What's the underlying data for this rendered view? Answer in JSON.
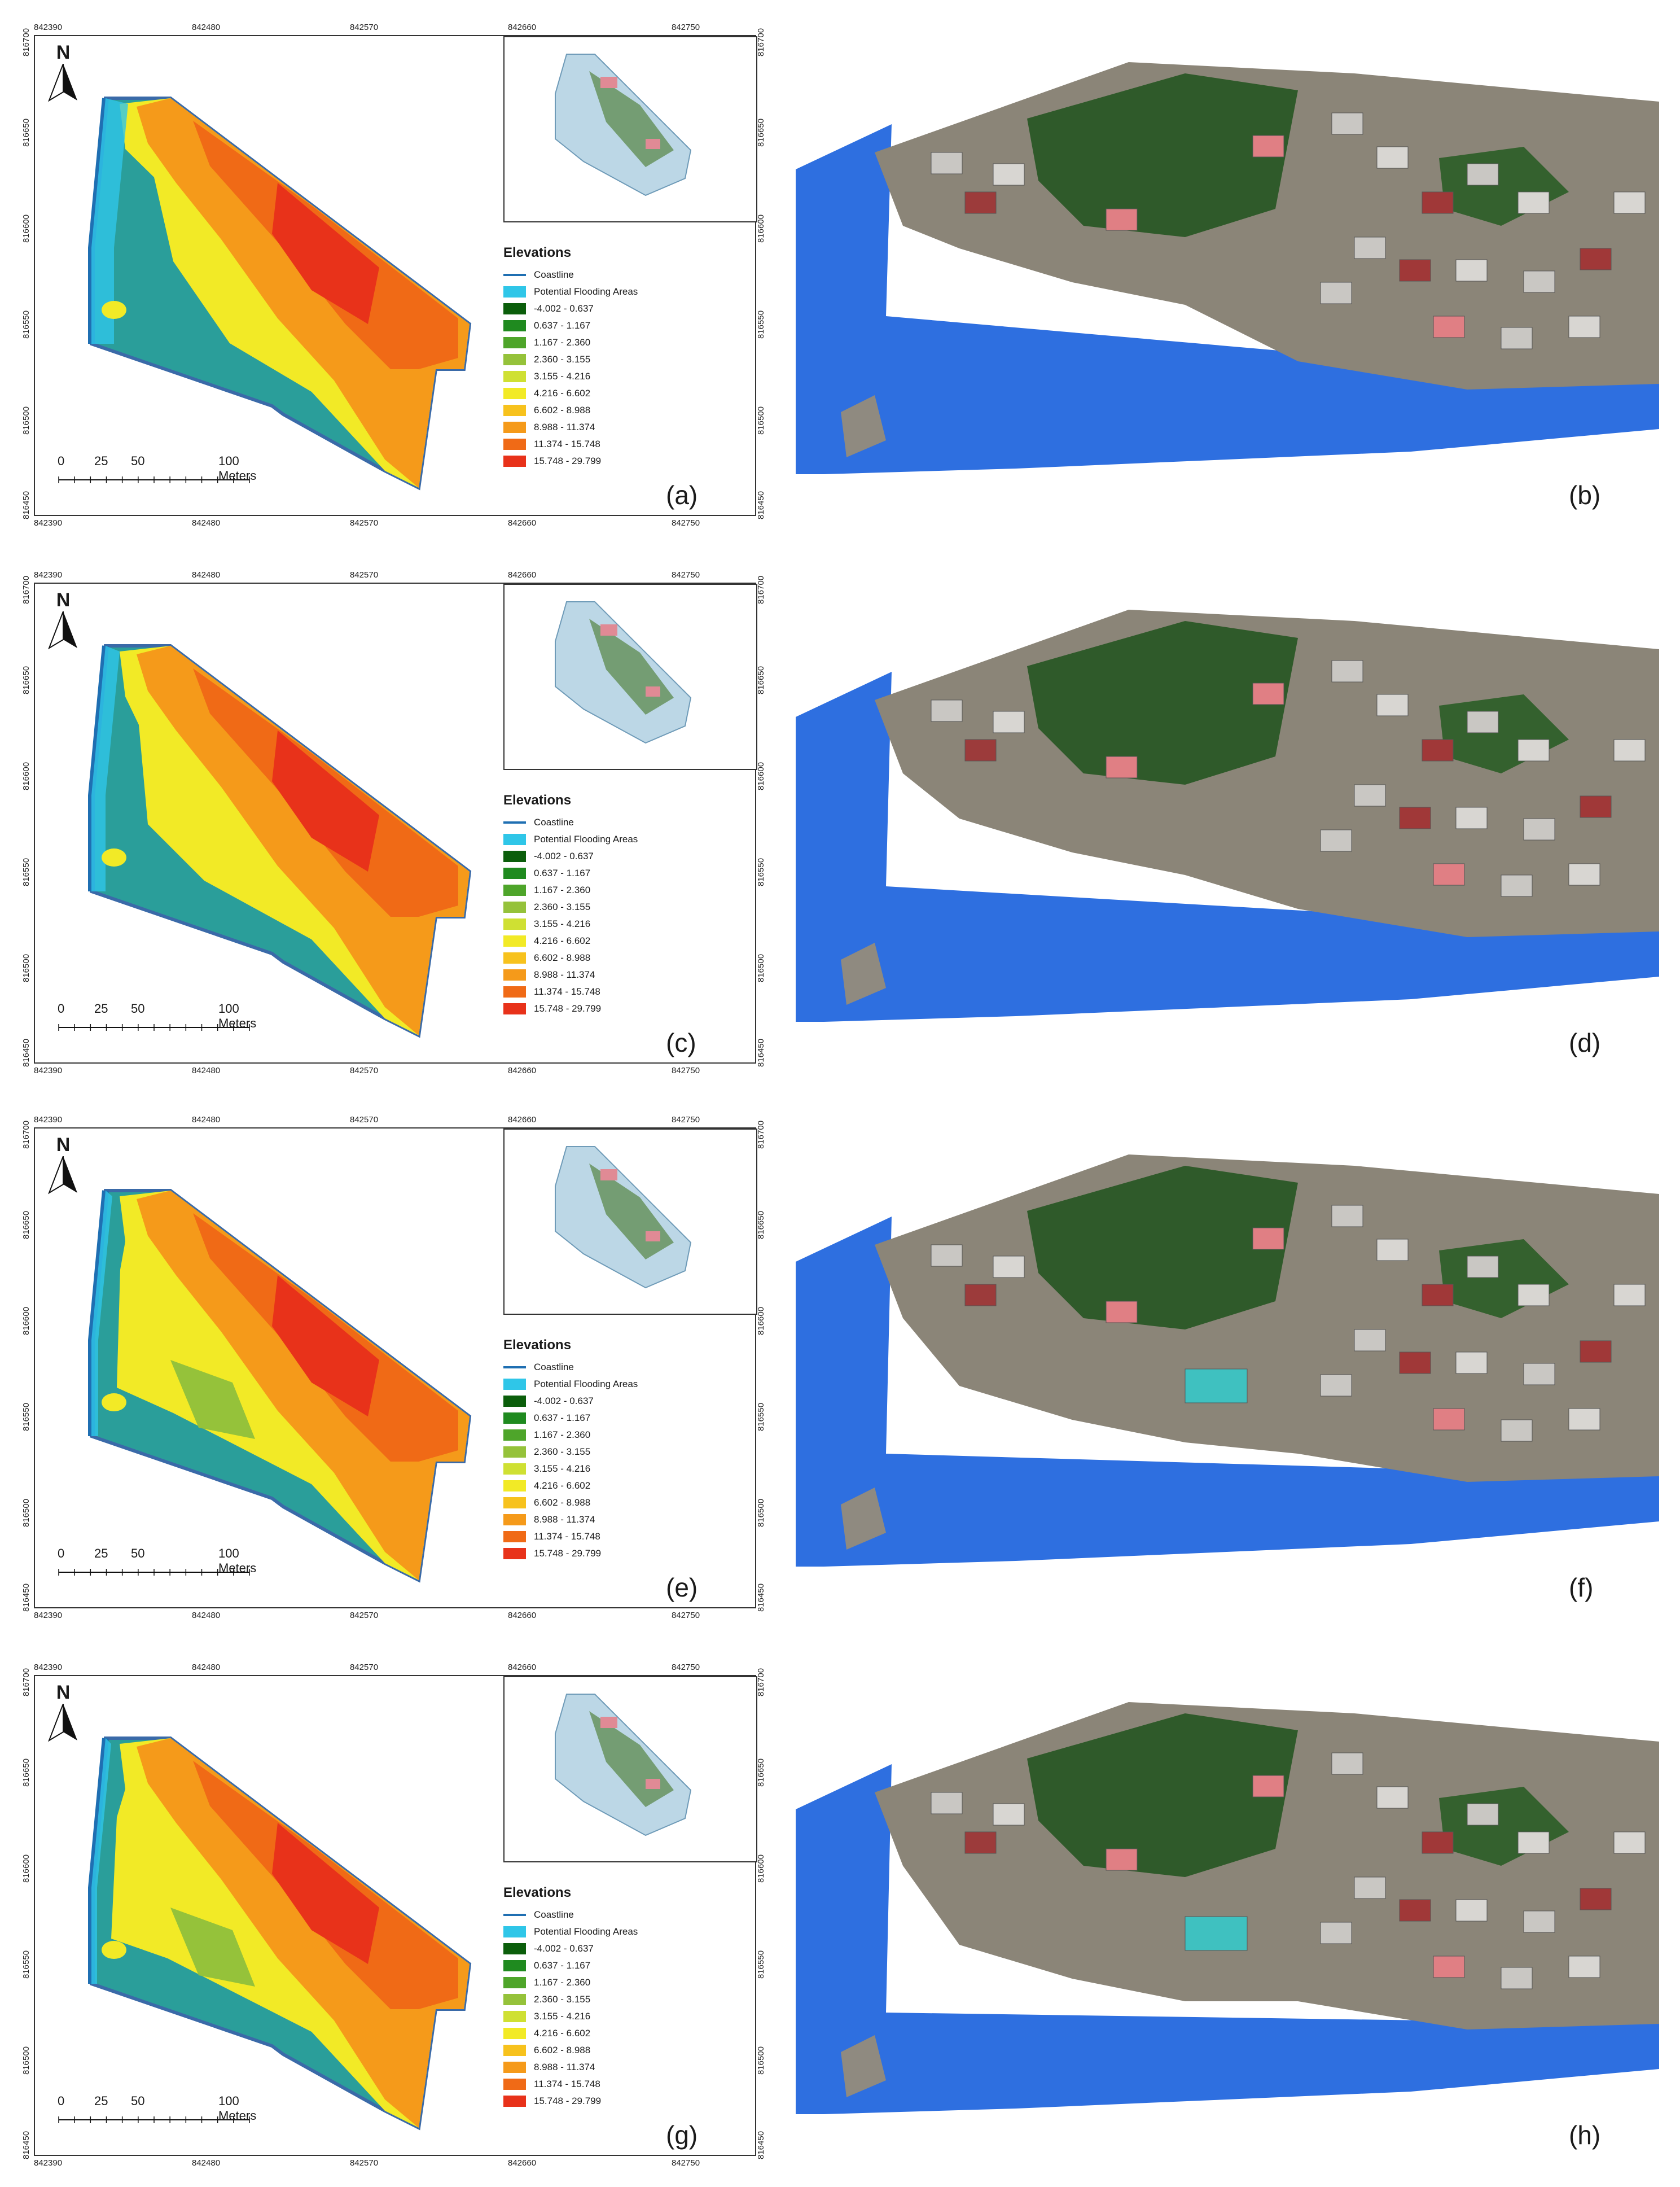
{
  "map": {
    "x_ticks": [
      "842390",
      "842480",
      "842570",
      "842660",
      "842750"
    ],
    "y_ticks": [
      "816700",
      "816650",
      "816600",
      "816550",
      "816500",
      "816450"
    ],
    "scale_labels": [
      "0",
      "25",
      "50",
      "100 Meters"
    ],
    "north_label": "N"
  },
  "legend": {
    "title": "Elevations",
    "coastline": "Coastline",
    "flooding": "Potential Flooding Areas",
    "classes": [
      {
        "label": "-4.002 - 0.637",
        "color": "#0b5e0b"
      },
      {
        "label": "0.637 - 1.167",
        "color": "#1f8a1f"
      },
      {
        "label": "1.167 - 2.360",
        "color": "#4ea52a"
      },
      {
        "label": "2.360 - 3.155",
        "color": "#95c23a"
      },
      {
        "label": "3.155 - 4.216",
        "color": "#cfe033"
      },
      {
        "label": "4.216 - 6.602",
        "color": "#f2ea26"
      },
      {
        "label": "6.602 - 8.988",
        "color": "#f7c21d"
      },
      {
        "label": "8.988 - 11.374",
        "color": "#f59a1a"
      },
      {
        "label": "11.374 - 15.748",
        "color": "#f06a16"
      },
      {
        "label": "15.748 - 29.799",
        "color": "#e8321a"
      }
    ]
  },
  "colors": {
    "flood": "#2fc6e8",
    "coastline": "#1f6fb2",
    "low_land": "#2a9e9a",
    "water_3d": "#2e6fe0"
  },
  "panels": [
    {
      "label": "(a)",
      "scenario": 1
    },
    {
      "label": "(b)",
      "scenario": 1
    },
    {
      "label": "(c)",
      "scenario": 2
    },
    {
      "label": "(d)",
      "scenario": 2
    },
    {
      "label": "(e)",
      "scenario": 3
    },
    {
      "label": "(f)",
      "scenario": 3
    },
    {
      "label": "(g)",
      "scenario": 4
    },
    {
      "label": "(h)",
      "scenario": 4
    }
  ]
}
